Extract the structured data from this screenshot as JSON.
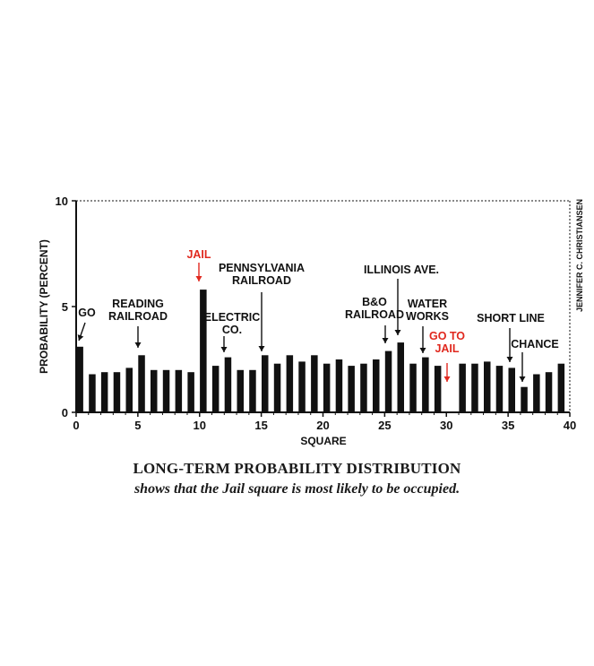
{
  "chart_data": {
    "type": "bar",
    "xlabel": "SQUARE",
    "ylabel": "PROBABILITY (PERCENT)",
    "xlim": [
      0,
      40
    ],
    "ylim": [
      0,
      10
    ],
    "x_ticks": [
      "0",
      "5",
      "10",
      "15",
      "20",
      "25",
      "30",
      "35",
      "40"
    ],
    "y_ticks": [
      "0",
      "5",
      "10"
    ],
    "grid": false,
    "categories": [
      0,
      1,
      2,
      3,
      4,
      5,
      6,
      7,
      8,
      9,
      10,
      11,
      12,
      13,
      14,
      15,
      16,
      17,
      18,
      19,
      20,
      21,
      22,
      23,
      24,
      25,
      26,
      27,
      28,
      29,
      30,
      31,
      32,
      33,
      34,
      35,
      36,
      37,
      38,
      39
    ],
    "values": [
      3.1,
      1.8,
      1.9,
      1.9,
      2.1,
      2.7,
      2.0,
      2.0,
      2.0,
      1.9,
      5.8,
      2.2,
      2.6,
      2.0,
      2.0,
      2.7,
      2.3,
      2.7,
      2.4,
      2.7,
      2.3,
      2.5,
      2.2,
      2.3,
      2.5,
      2.9,
      3.3,
      2.3,
      2.6,
      2.2,
      0,
      2.3,
      2.3,
      2.4,
      2.2,
      2.1,
      1.2,
      1.8,
      1.9,
      2.3
    ],
    "annotations": [
      {
        "label": [
          "GO"
        ],
        "square": 0,
        "color": "#111111"
      },
      {
        "label": [
          "READING",
          "RAILROAD"
        ],
        "square": 5,
        "color": "#111111"
      },
      {
        "label": [
          "JAIL"
        ],
        "square": 10,
        "color": "#e0281e"
      },
      {
        "label": [
          "ELECTRIC",
          "CO."
        ],
        "square": 12,
        "color": "#111111"
      },
      {
        "label": [
          "PENNSYLVANIA",
          "RAILROAD"
        ],
        "square": 15,
        "color": "#111111"
      },
      {
        "label": [
          "B&O",
          "RAILROAD"
        ],
        "square": 25,
        "color": "#111111"
      },
      {
        "label": [
          "ILLINOIS AVE."
        ],
        "square": 26,
        "color": "#111111"
      },
      {
        "label": [
          "WATER",
          "WORKS"
        ],
        "square": 28,
        "color": "#111111"
      },
      {
        "label": [
          "GO TO",
          "JAIL"
        ],
        "square": 30,
        "color": "#e0281e"
      },
      {
        "label": [
          "SHORT LINE"
        ],
        "square": 35,
        "color": "#111111"
      },
      {
        "label": [
          "CHANCE"
        ],
        "square": 36,
        "color": "#111111"
      }
    ],
    "credit": "JENNIFER C. CHRISTIANSEN"
  },
  "caption": {
    "title": "LONG-TERM PROBABILITY DISTRIBUTION",
    "subtitle": "shows that the Jail square is most likely to be occupied."
  },
  "colors": {
    "bar": "#111111",
    "accent_red": "#e0281e"
  }
}
